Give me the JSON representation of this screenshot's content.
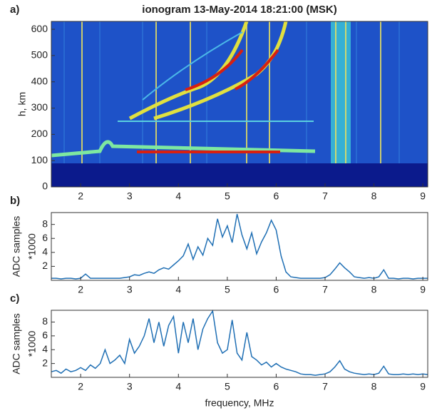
{
  "chart_data": [
    {
      "type": "heatmap",
      "label": "a)",
      "title": "ionogram 13-May-2014 18:21:00 (MSK)",
      "ylabel": "h, km",
      "xlim": [
        1.4,
        9.1
      ],
      "xticks": [
        2,
        3,
        4,
        5,
        6,
        7,
        8,
        9
      ],
      "ylim": [
        0,
        630
      ],
      "yticks": [
        0,
        100,
        200,
        300,
        400,
        500,
        600
      ]
    },
    {
      "type": "line",
      "label": "b)",
      "ylabel": [
        "ADC samples",
        "*1000"
      ],
      "color": "#1f6fb4",
      "xlim": [
        1.4,
        9.1
      ],
      "xticks": [
        2,
        3,
        4,
        5,
        6,
        7,
        8,
        9
      ],
      "ylim": [
        0,
        9.7
      ],
      "yticks": [
        2,
        4,
        6,
        8
      ],
      "x": [
        1.4,
        1.5,
        1.6,
        1.7,
        1.8,
        1.9,
        2.0,
        2.1,
        2.2,
        2.3,
        2.4,
        2.5,
        2.6,
        2.7,
        2.8,
        2.9,
        3.0,
        3.1,
        3.2,
        3.3,
        3.4,
        3.5,
        3.6,
        3.7,
        3.8,
        3.9,
        4.0,
        4.1,
        4.2,
        4.3,
        4.4,
        4.5,
        4.6,
        4.7,
        4.8,
        4.9,
        5.0,
        5.1,
        5.2,
        5.3,
        5.4,
        5.5,
        5.6,
        5.7,
        5.8,
        5.9,
        6.0,
        6.1,
        6.2,
        6.3,
        6.4,
        6.5,
        6.6,
        6.7,
        6.8,
        6.9,
        7.0,
        7.1,
        7.2,
        7.3,
        7.4,
        7.5,
        7.6,
        7.7,
        7.8,
        7.9,
        8.0,
        8.1,
        8.2,
        8.3,
        8.4,
        8.5,
        8.6,
        8.7,
        8.8,
        8.9,
        9.0,
        9.1
      ],
      "values": [
        0.3,
        0.3,
        0.2,
        0.3,
        0.3,
        0.2,
        0.3,
        0.9,
        0.3,
        0.3,
        0.3,
        0.3,
        0.3,
        0.3,
        0.3,
        0.4,
        0.5,
        0.8,
        0.7,
        1.0,
        1.2,
        1.0,
        1.5,
        1.8,
        1.6,
        2.2,
        2.8,
        3.5,
        5.2,
        3.0,
        4.8,
        3.6,
        6.0,
        5.0,
        8.8,
        6.2,
        7.8,
        5.4,
        9.5,
        6.5,
        4.5,
        6.8,
        3.8,
        5.5,
        6.8,
        8.6,
        7.2,
        3.5,
        1.2,
        0.5,
        0.4,
        0.3,
        0.3,
        0.3,
        0.3,
        0.3,
        0.4,
        0.8,
        1.6,
        2.5,
        1.8,
        1.2,
        0.5,
        0.4,
        0.3,
        0.4,
        0.3,
        0.5,
        1.5,
        0.3,
        0.3,
        0.2,
        0.3,
        0.3,
        0.2,
        0.3,
        0.3,
        0.3
      ]
    },
    {
      "type": "line",
      "label": "c)",
      "ylabel": [
        "ADC samples",
        "*1000"
      ],
      "xlabel": "frequency, MHz",
      "color": "#1f6fb4",
      "xlim": [
        1.4,
        9.1
      ],
      "xticks": [
        2,
        3,
        4,
        5,
        6,
        7,
        8,
        9
      ],
      "ylim": [
        0,
        9.7
      ],
      "yticks": [
        2,
        4,
        6,
        8
      ],
      "x": [
        1.4,
        1.5,
        1.6,
        1.7,
        1.8,
        1.9,
        2.0,
        2.1,
        2.2,
        2.3,
        2.4,
        2.5,
        2.6,
        2.7,
        2.8,
        2.9,
        3.0,
        3.1,
        3.2,
        3.3,
        3.4,
        3.5,
        3.6,
        3.7,
        3.8,
        3.9,
        4.0,
        4.1,
        4.2,
        4.3,
        4.4,
        4.5,
        4.6,
        4.7,
        4.8,
        4.9,
        5.0,
        5.1,
        5.2,
        5.3,
        5.4,
        5.5,
        5.6,
        5.7,
        5.8,
        5.9,
        6.0,
        6.1,
        6.2,
        6.3,
        6.4,
        6.5,
        6.6,
        6.7,
        6.8,
        6.9,
        7.0,
        7.1,
        7.2,
        7.3,
        7.4,
        7.5,
        7.6,
        7.7,
        7.8,
        7.9,
        8.0,
        8.1,
        8.2,
        8.3,
        8.4,
        8.5,
        8.6,
        8.7,
        8.8,
        8.9,
        9.0,
        9.1
      ],
      "values": [
        0.8,
        1.0,
        0.6,
        1.2,
        0.8,
        1.0,
        1.4,
        1.0,
        1.8,
        1.3,
        2.0,
        4.0,
        2.0,
        2.5,
        3.2,
        2.0,
        5.5,
        3.5,
        4.5,
        6.0,
        8.5,
        5.0,
        8.0,
        4.5,
        7.5,
        8.8,
        3.5,
        8.0,
        5.0,
        8.5,
        4.0,
        7.0,
        8.5,
        9.6,
        5.0,
        3.5,
        4.0,
        8.3,
        3.5,
        2.5,
        6.5,
        3.0,
        2.5,
        1.8,
        2.2,
        1.5,
        2.0,
        1.5,
        1.2,
        1.0,
        0.8,
        0.5,
        0.4,
        0.4,
        0.3,
        0.4,
        0.5,
        0.8,
        1.5,
        2.4,
        1.2,
        0.8,
        0.6,
        0.5,
        0.4,
        0.5,
        0.4,
        0.6,
        1.6,
        0.5,
        0.4,
        0.4,
        0.5,
        0.4,
        0.5,
        0.4,
        0.5,
        0.4
      ]
    }
  ]
}
